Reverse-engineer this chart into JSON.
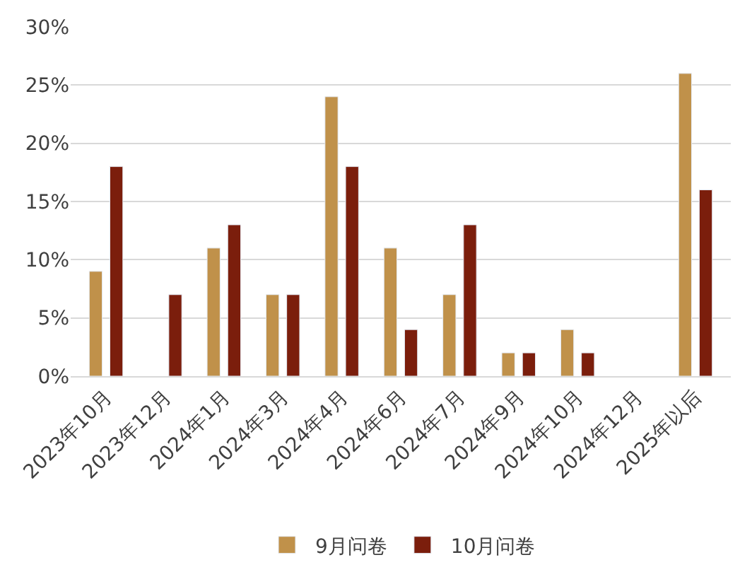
{
  "chart_data": {
    "type": "bar",
    "categories": [
      "2023年10月",
      "2023年12月",
      "2024年1月",
      "2024年3月",
      "2024年4月",
      "2024年6月",
      "2024年7月",
      "2024年9月",
      "2024年10月",
      "2024年12月",
      "2025年以后"
    ],
    "series": [
      {
        "name": "9月问卷",
        "color": "#c0914a",
        "values": [
          9,
          null,
          11,
          7,
          24,
          11,
          7,
          2,
          4,
          null,
          26
        ]
      },
      {
        "name": "10月问卷",
        "color": "#7b1e0c",
        "values": [
          18,
          7,
          13,
          7,
          18,
          4,
          13,
          2,
          2,
          null,
          16
        ]
      }
    ],
    "ylim": [
      0,
      30
    ],
    "yticks": [
      {
        "value": 0,
        "label": "0%"
      },
      {
        "value": 5,
        "label": "5%"
      },
      {
        "value": 10,
        "label": "10%"
      },
      {
        "value": 15,
        "label": "15%"
      },
      {
        "value": 20,
        "label": "20%"
      },
      {
        "value": 25,
        "label": "25%"
      },
      {
        "value": 30,
        "label": "30%"
      }
    ],
    "grid": "y",
    "legend": "bottom"
  }
}
